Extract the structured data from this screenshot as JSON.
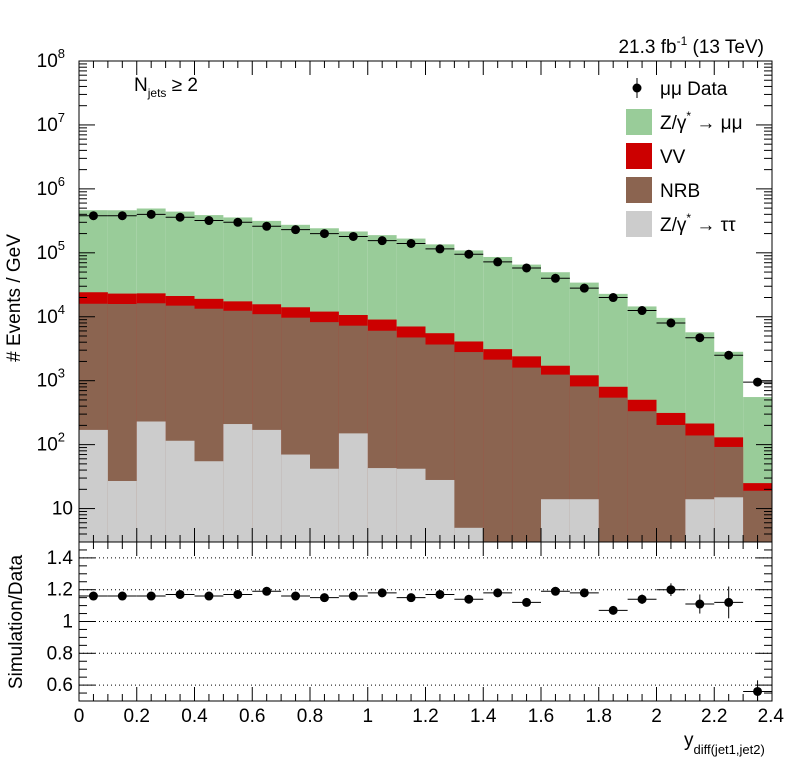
{
  "chart_data": [
    {
      "type": "bar",
      "stacked": true,
      "log_y": true,
      "ylabel": "# Events / GeV",
      "ylim": [
        3,
        100000000
      ],
      "xlim": [
        0,
        2.4
      ],
      "lumi_label": "21.3 fb",
      "lumi_sup": "-1",
      "lumi_energy": " (13 TeV)",
      "selection_label": "N",
      "selection_sub": "jets",
      "selection_suffix": " ≥ 2",
      "y_tick_labels": [
        "10",
        "10",
        "10",
        "10",
        "10",
        "10",
        "10",
        "10"
      ],
      "y_tick_exponents": [
        "",
        "2",
        "3",
        "4",
        "5",
        "6",
        "7",
        "8"
      ],
      "y_tick_values": [
        10,
        100,
        1000,
        10000,
        100000,
        1000000,
        10000000,
        100000000
      ],
      "bin_edges": [
        0,
        0.1,
        0.2,
        0.3,
        0.4,
        0.5,
        0.6,
        0.7,
        0.8,
        0.9,
        1.0,
        1.1,
        1.2,
        1.3,
        1.4,
        1.5,
        1.6,
        1.7,
        1.8,
        1.9,
        2.0,
        2.1,
        2.2,
        2.3,
        2.4
      ],
      "series": [
        {
          "name": "Z/γ* → ττ",
          "color": "#cccccc",
          "values": [
            170,
            27,
            230,
            115,
            55,
            210,
            170,
            70,
            42,
            150,
            43,
            42,
            28,
            5,
            3,
            3,
            14,
            14,
            3,
            3,
            3,
            14,
            15,
            3
          ]
        },
        {
          "name": "NRB",
          "color": "#8b6450",
          "values": [
            15800,
            15800,
            16000,
            14800,
            13300,
            12200,
            10800,
            9600,
            8200,
            7100,
            6000,
            4700,
            3650,
            2800,
            2130,
            1600,
            1230,
            800,
            540,
            330,
            200,
            125,
            77,
            16
          ]
        },
        {
          "name": "VV",
          "color": "#cc0000",
          "values": [
            8200,
            7200,
            7000,
            6200,
            5700,
            5000,
            4700,
            4400,
            3800,
            3400,
            3000,
            2300,
            1850,
            1300,
            980,
            800,
            470,
            400,
            260,
            170,
            110,
            75,
            38,
            6
          ]
        },
        {
          "name": "Z/γ* → μμ",
          "color": "#99cc99",
          "values": [
            440000,
            440000,
            470000,
            420000,
            370000,
            340000,
            300000,
            260000,
            230000,
            205000,
            180000,
            160000,
            130000,
            105000,
            83000,
            63000,
            48000,
            33000,
            22000,
            14000,
            9300,
            5500,
            2700,
            530
          ]
        }
      ],
      "data_series": {
        "name": "μμ Data",
        "values": [
          380000,
          380000,
          400000,
          360000,
          320000,
          300000,
          260000,
          230000,
          200000,
          180000,
          155000,
          140000,
          115000,
          95000,
          72000,
          58000,
          40000,
          28000,
          20000,
          12500,
          8000,
          4700,
          2500,
          950
        ]
      },
      "legend": [
        {
          "label": "μμ Data",
          "kind": "marker"
        },
        {
          "label": "Z/γ",
          "sup": "*",
          "tail": " → μμ",
          "kind": "box",
          "color": "#99cc99"
        },
        {
          "label": "VV",
          "kind": "box",
          "color": "#cc0000"
        },
        {
          "label": "NRB",
          "kind": "box",
          "color": "#8b6450"
        },
        {
          "label": "Z/γ",
          "sup": "*",
          "tail": " → ττ",
          "kind": "box",
          "color": "#cccccc"
        }
      ],
      "legend_position": "top-right"
    },
    {
      "type": "scatter",
      "ylabel": "Simulation/Data",
      "xlabel": "y",
      "xlabel_sub": "diff(jet1,jet2)",
      "xlim": [
        0,
        2.4
      ],
      "ylim": [
        0.5,
        1.5
      ],
      "x_ticks": [
        0,
        0.2,
        0.4,
        0.6,
        0.8,
        1,
        1.2,
        1.4,
        1.6,
        1.8,
        2,
        2.2,
        2.4
      ],
      "x_tick_labels": [
        "0",
        "0.2",
        "0.4",
        "0.6",
        "0.8",
        "1",
        "1.2",
        "1.4",
        "1.6",
        "1.8",
        "2",
        "2.2",
        "2.4"
      ],
      "y_ticks": [
        0.6,
        0.8,
        1.0,
        1.2,
        1.4
      ],
      "y_tick_labels": [
        "0.6",
        "0.8",
        "1",
        "1.2",
        "1.4"
      ],
      "reference_lines": [
        0.6,
        0.8,
        1.0,
        1.2,
        1.4
      ],
      "x": [
        0.05,
        0.15,
        0.25,
        0.35,
        0.45,
        0.55,
        0.65,
        0.75,
        0.85,
        0.95,
        1.05,
        1.15,
        1.25,
        1.35,
        1.45,
        1.55,
        1.65,
        1.75,
        1.85,
        1.95,
        2.05,
        2.15,
        2.25,
        2.35
      ],
      "y": [
        1.16,
        1.16,
        1.16,
        1.17,
        1.16,
        1.17,
        1.19,
        1.16,
        1.15,
        1.16,
        1.18,
        1.15,
        1.17,
        1.14,
        1.18,
        1.12,
        1.19,
        1.18,
        1.07,
        1.14,
        1.2,
        1.11,
        1.12,
        0.56
      ],
      "yerr": [
        0.005,
        0.005,
        0.005,
        0.005,
        0.005,
        0.005,
        0.005,
        0.005,
        0.005,
        0.005,
        0.005,
        0.006,
        0.007,
        0.008,
        0.009,
        0.012,
        0.015,
        0.02,
        0.025,
        0.03,
        0.04,
        0.06,
        0.1,
        0.07
      ]
    }
  ],
  "colors": {
    "frame": "#000000",
    "marker": "#000000"
  }
}
